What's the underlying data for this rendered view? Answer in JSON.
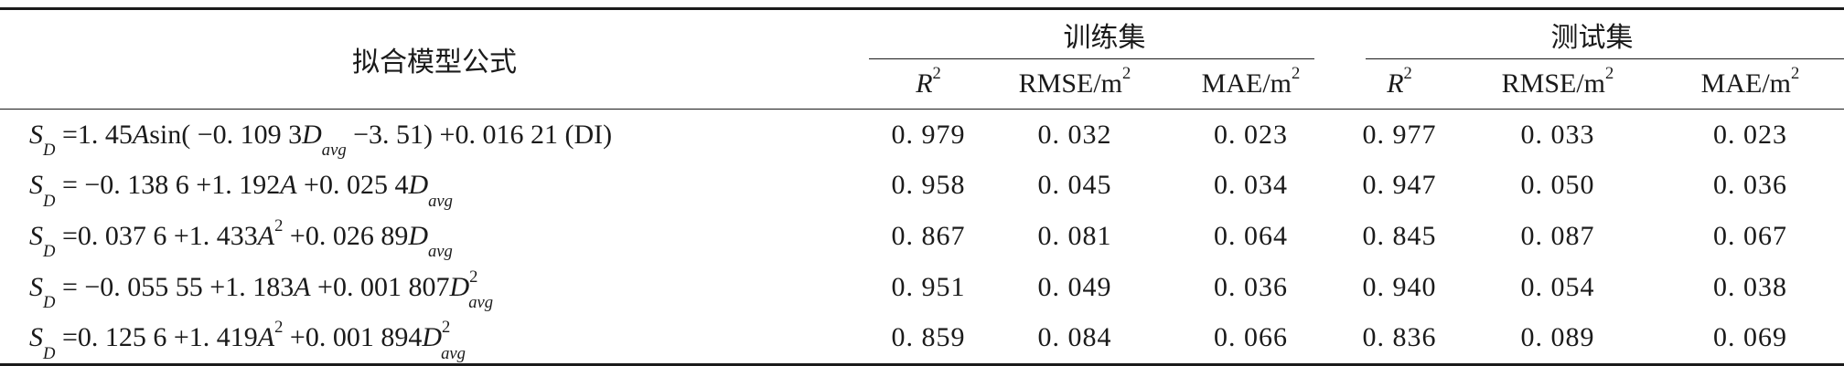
{
  "header": {
    "formula_col": "拟合模型公式",
    "train_group": "训练集",
    "test_group": "测试集",
    "metrics": {
      "r2_base": "R",
      "r2_exp": "2",
      "rmse_base": "RMSE/m",
      "rmse_exp": "2",
      "mae_base": "MAE/m",
      "mae_exp": "2"
    }
  },
  "rows": [
    {
      "formula": {
        "lhs": "S",
        "lhs_sub": "D",
        "p1": " =1. 45",
        "v1": "A",
        "p2": "sin( −0. 109 3",
        "v2": "D",
        "v2_sub": "avg",
        "p3": " −3. 51) +0. 016 21 (DI)"
      },
      "train": {
        "r2": "0. 979",
        "rmse": "0. 032",
        "mae": "0. 023"
      },
      "test": {
        "r2": "0. 977",
        "rmse": "0. 033",
        "mae": "0. 023"
      }
    },
    {
      "formula": {
        "lhs": "S",
        "lhs_sub": "D",
        "p1": " = −0. 138 6 +1. 192",
        "v1": "A",
        "p2": " +0. 025 4",
        "v2": "D",
        "v2_sub": "avg"
      },
      "train": {
        "r2": "0. 958",
        "rmse": "0. 045",
        "mae": "0. 034"
      },
      "test": {
        "r2": "0. 947",
        "rmse": "0. 050",
        "mae": "0. 036"
      }
    },
    {
      "formula": {
        "lhs": "S",
        "lhs_sub": "D",
        "p1": " =0. 037 6 +1. 433",
        "v1": "A",
        "v1_sup": "2",
        "p2": " +0. 026 89",
        "v2": "D",
        "v2_sub": "avg"
      },
      "train": {
        "r2": "0. 867",
        "rmse": "0. 081",
        "mae": "0. 064"
      },
      "test": {
        "r2": "0. 845",
        "rmse": "0. 087",
        "mae": "0. 067"
      }
    },
    {
      "formula": {
        "lhs": "S",
        "lhs_sub": "D",
        "p1": " = −0. 055 55 +1. 183",
        "v1": "A",
        "p2": " +0. 001 807",
        "v2": "D",
        "v2_sup": "2",
        "v2_sub": "avg"
      },
      "train": {
        "r2": "0. 951",
        "rmse": "0. 049",
        "mae": "0. 036"
      },
      "test": {
        "r2": "0. 940",
        "rmse": "0. 054",
        "mae": "0. 038"
      }
    },
    {
      "formula": {
        "lhs": "S",
        "lhs_sub": "D",
        "p1": " =0. 125 6 +1. 419",
        "v1": "A",
        "v1_sup": "2",
        "p2": " +0. 001 894",
        "v2": "D",
        "v2_sup": "2",
        "v2_sub": "avg"
      },
      "train": {
        "r2": "0. 859",
        "rmse": "0. 084",
        "mae": "0. 066"
      },
      "test": {
        "r2": "0. 836",
        "rmse": "0. 089",
        "mae": "0. 069"
      }
    }
  ]
}
